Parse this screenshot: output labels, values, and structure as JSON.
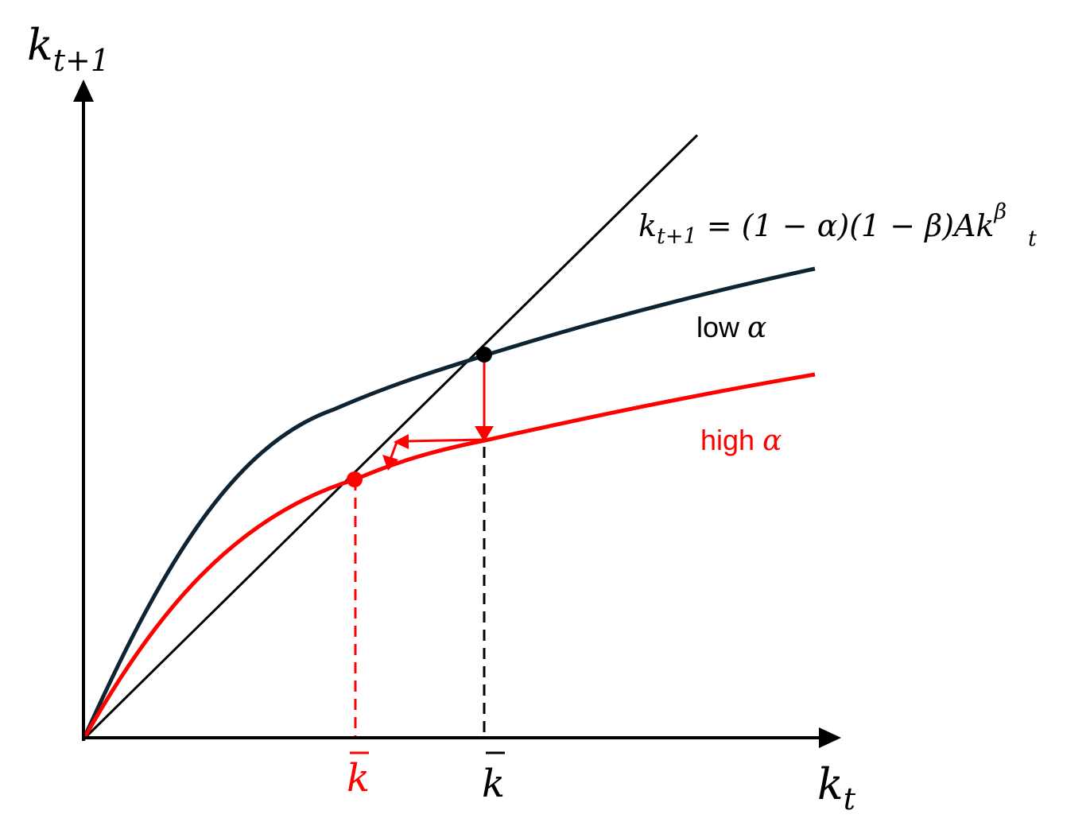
{
  "axes": {
    "y_label": {
      "base": "k",
      "sub": "t+1"
    },
    "x_label": {
      "base": "k",
      "sub": "t"
    }
  },
  "equation": {
    "lhs_base": "k",
    "lhs_sub": "t+1",
    "eq": " = ",
    "factor1": "(1 − α)",
    "factor2": "(1 − β)",
    "coef": "A",
    "var": "k",
    "var_sub": "t",
    "var_sup": "β"
  },
  "curves": {
    "low": {
      "label_text": "low ",
      "label_symbol": "α",
      "color": "#0f2433"
    },
    "high": {
      "label_text": "high ",
      "label_symbol": "α",
      "color": "#ff0000"
    }
  },
  "steady_states": {
    "low": {
      "symbol": "k",
      "color": "#000000"
    },
    "high": {
      "symbol": "k",
      "color": "#ff0000"
    }
  },
  "colors": {
    "axis": "#000000",
    "diagonal": "#000000",
    "arrows": "#ff0000"
  }
}
